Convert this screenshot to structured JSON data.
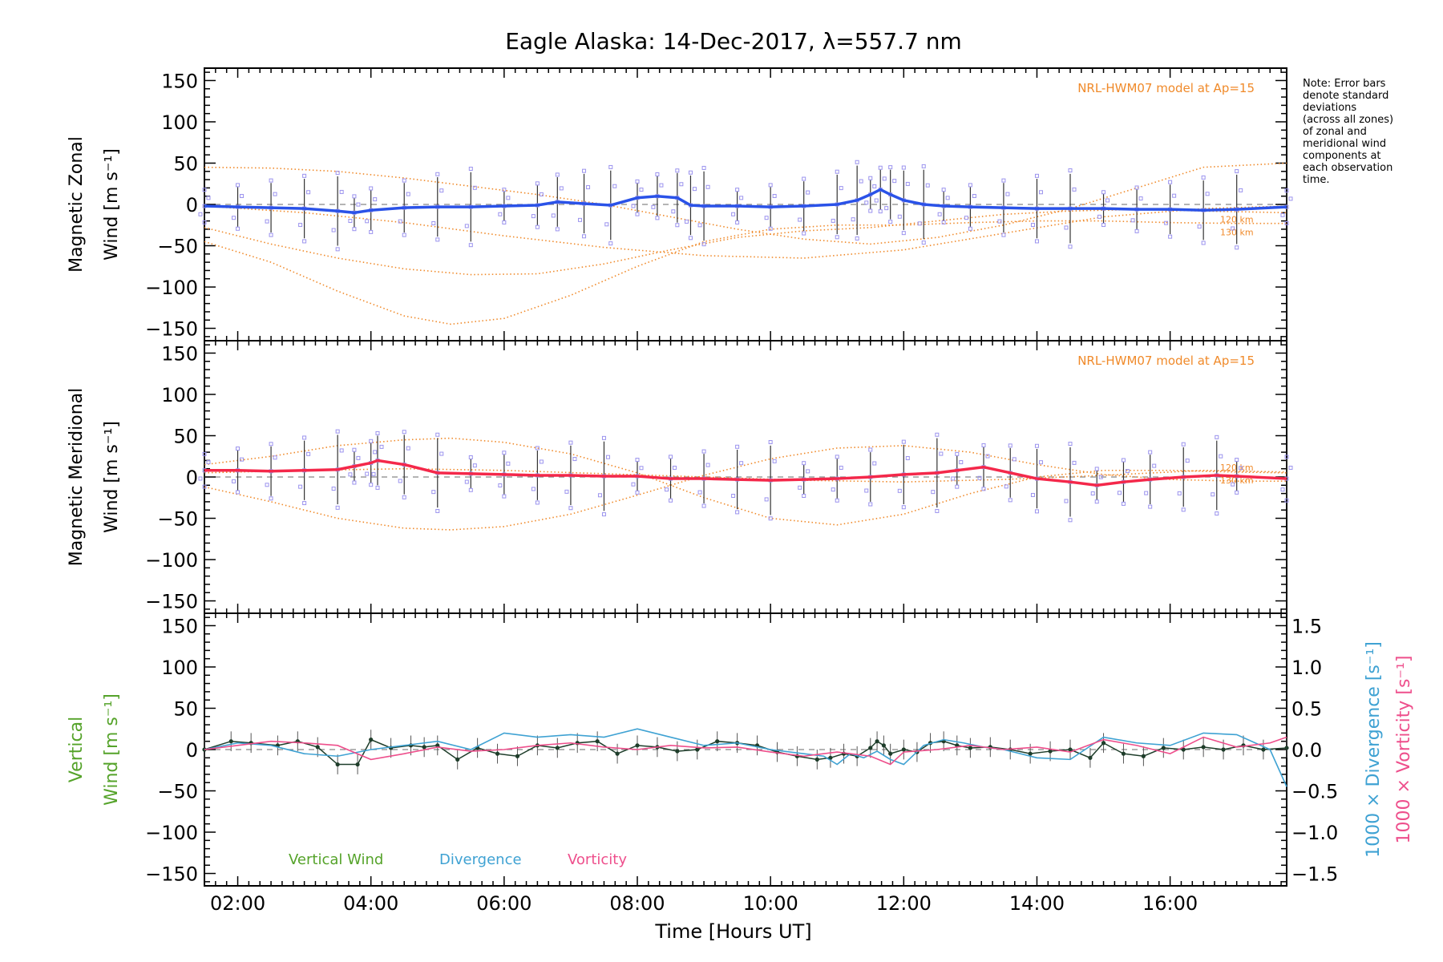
{
  "chart_data": {
    "type": "line",
    "title": "Eagle Alaska: 14-Dec-2017, λ=557.7 nm",
    "xlabel": "Time [Hours UT]",
    "xlim": [
      1.5,
      17.75
    ],
    "x_ticks": [
      {
        "v": 2,
        "label": "02:00"
      },
      {
        "v": 4,
        "label": "04:00"
      },
      {
        "v": 6,
        "label": "06:00"
      },
      {
        "v": 8,
        "label": "08:00"
      },
      {
        "v": 10,
        "label": "10:00"
      },
      {
        "v": 12,
        "label": "12:00"
      },
      {
        "v": 14,
        "label": "14:00"
      },
      {
        "v": 16,
        "label": "16:00"
      }
    ],
    "note": [
      "Note: Error bars",
      "denote standard",
      "deviations",
      "(across all zones)",
      "of zonal and",
      "meridional wind",
      "components at",
      "each observation",
      "time."
    ],
    "panels": [
      {
        "id": "zonal",
        "ylabel_1": "Magnetic Zonal",
        "ylabel_2": "Wind [m s⁻¹]",
        "ylim": [
          -165,
          165
        ],
        "y_ticks": [
          -150,
          -100,
          -50,
          0,
          50,
          100,
          150
        ],
        "model_label": "NRL-HWM07 model at Ap=15",
        "model_alt_labels": [
          "120 km",
          "130 km"
        ],
        "series": [
          {
            "name": "zonal",
            "color": "#2a52e8",
            "x": [
              1.5,
              2.0,
              2.5,
              3.0,
              3.5,
              3.75,
              4.0,
              4.5,
              5.0,
              5.5,
              6.0,
              6.5,
              6.8,
              7.2,
              7.6,
              8.0,
              8.3,
              8.6,
              8.8,
              9.0,
              9.5,
              10.0,
              10.5,
              11.0,
              11.3,
              11.5,
              11.65,
              11.8,
              12.0,
              12.3,
              12.6,
              13.0,
              13.5,
              14.0,
              14.5,
              15.0,
              15.5,
              16.0,
              16.5,
              17.0,
              17.75
            ],
            "y": [
              -2,
              -3,
              -4,
              -5,
              -8,
              -10,
              -7,
              -4,
              -3,
              -3,
              -2,
              -1,
              3,
              1,
              -1,
              8,
              10,
              8,
              -1,
              -2,
              -2,
              -3,
              -2,
              0,
              5,
              12,
              18,
              12,
              5,
              0,
              -2,
              -3,
              -4,
              -5,
              -5,
              -5,
              -6,
              -6,
              -7,
              -6,
              -3
            ]
          }
        ],
        "model_curves": [
          {
            "x": [
              1.5,
              2.5,
              3.5,
              4.5,
              5.5,
              6.5,
              7.5,
              8.5,
              9.5,
              10.5,
              11.5,
              12.5,
              13.5,
              14.5,
              15.5,
              16.5,
              17.75
            ],
            "y": [
              45,
              44,
              40,
              32,
              22,
              12,
              0,
              -15,
              -30,
              -42,
              -48,
              -40,
              -25,
              -5,
              20,
              45,
              50
            ]
          },
          {
            "x": [
              1.5,
              2.5,
              3.5,
              4.5,
              5.2,
              6.0,
              7.0,
              8.0,
              9.0,
              10.0,
              11.0,
              12.0,
              13.0,
              14.0,
              15.0,
              16.0,
              17.0,
              17.75
            ],
            "y": [
              -45,
              -70,
              -105,
              -135,
              -145,
              -138,
              -110,
              -75,
              -45,
              -30,
              -25,
              -25,
              -22,
              -20,
              -20,
              -22,
              -23,
              -23
            ]
          },
          {
            "x": [
              1.5,
              2.5,
              3.5,
              4.5,
              5.5,
              6.5,
              7.5,
              8.5,
              9.5,
              10.5,
              11.5,
              12.5,
              13.5,
              14.5,
              15.5,
              16.5,
              17.75
            ],
            "y": [
              -28,
              -48,
              -65,
              -78,
              -85,
              -84,
              -72,
              -55,
              -40,
              -32,
              -28,
              -20,
              -12,
              -8,
              -6,
              -8,
              -10
            ]
          },
          {
            "x": [
              1.5,
              3.0,
              4.5,
              6.0,
              7.5,
              9.0,
              10.5,
              12.0,
              13.5,
              15.0,
              16.5,
              17.75
            ],
            "y": [
              -2,
              -10,
              -22,
              -38,
              -52,
              -62,
              -65,
              -55,
              -35,
              -15,
              -5,
              -2
            ]
          }
        ]
      },
      {
        "id": "meridional",
        "ylabel_1": "Magnetic Meridional",
        "ylabel_2": "Wind [m s⁻¹]",
        "ylim": [
          -165,
          165
        ],
        "y_ticks": [
          -150,
          -100,
          -50,
          0,
          50,
          100,
          150
        ],
        "model_label": "NRL-HWM07 model at Ap=15",
        "model_alt_labels": [
          "120 km",
          "130 km"
        ],
        "series": [
          {
            "name": "meridional",
            "color": "#f4284a",
            "x": [
              1.5,
              2.0,
              2.5,
              3.0,
              3.5,
              3.75,
              4.0,
              4.1,
              4.5,
              5.0,
              5.5,
              6.0,
              6.5,
              7.0,
              7.5,
              8.0,
              8.5,
              9.0,
              9.5,
              10.0,
              10.5,
              11.0,
              11.5,
              12.0,
              12.5,
              12.8,
              13.2,
              13.6,
              14.0,
              14.5,
              14.9,
              15.3,
              15.7,
              16.2,
              16.7,
              17.0,
              17.75
            ],
            "y": [
              8,
              8,
              7,
              8,
              9,
              13,
              17,
              20,
              15,
              5,
              4,
              3,
              2,
              2,
              1,
              1,
              -2,
              -2,
              -3,
              -4,
              -3,
              -2,
              0,
              3,
              5,
              8,
              12,
              5,
              -2,
              -6,
              -10,
              -6,
              -3,
              0,
              2,
              1,
              -2
            ]
          }
        ],
        "model_curves": [
          {
            "x": [
              1.5,
              2.5,
              3.5,
              4.5,
              5.2,
              6.0,
              7.0,
              8.0,
              9.0,
              10.0,
              11.0,
              12.0,
              13.0,
              14.0,
              15.0,
              16.0,
              17.0,
              17.75
            ],
            "y": [
              -12,
              -30,
              -50,
              -62,
              -64,
              -60,
              -45,
              -22,
              2,
              22,
              35,
              38,
              30,
              15,
              3,
              -3,
              -5,
              -5
            ]
          },
          {
            "x": [
              1.5,
              2.5,
              3.5,
              4.5,
              5.2,
              6.0,
              7.0,
              8.0,
              9.0,
              10.0,
              11.0,
              12.0,
              13.0,
              14.0,
              15.0,
              16.0,
              17.0,
              17.75
            ],
            "y": [
              15,
              25,
              38,
              45,
              47,
              42,
              28,
              5,
              -25,
              -50,
              -58,
              -45,
              -20,
              0,
              8,
              8,
              6,
              5
            ]
          },
          {
            "x": [
              1.5,
              3.0,
              4.5,
              6.0,
              7.5,
              9.0,
              10.5,
              12.0,
              13.5,
              15.0,
              16.5,
              17.75
            ],
            "y": [
              5,
              8,
              10,
              8,
              4,
              0,
              -4,
              -6,
              -3,
              2,
              8,
              6
            ]
          }
        ]
      },
      {
        "id": "vertical",
        "ylabel_1": "Vertical",
        "ylabel_2": "Wind [m s⁻¹]",
        "ylim": [
          -165,
          165
        ],
        "y_ticks": [
          -150,
          -100,
          -50,
          0,
          50,
          100,
          150
        ],
        "right_axis": {
          "label_div": "1000 × Divergence [s⁻¹]",
          "label_vort": "1000 × Vorticity [s⁻¹]",
          "ylim": [
            -1.65,
            1.65
          ],
          "ticks": [
            {
              "v": -1.5,
              "label": "−1.5"
            },
            {
              "v": -1.0,
              "label": "−1.0"
            },
            {
              "v": -0.5,
              "label": "−0.5"
            },
            {
              "v": 0,
              "label": "0.0"
            },
            {
              "v": 0.5,
              "label": "0.5"
            },
            {
              "v": 1.0,
              "label": "1.0"
            },
            {
              "v": 1.5,
              "label": "1.5"
            }
          ]
        },
        "legend": [
          {
            "name": "Vertical Wind",
            "color": "#55a32a"
          },
          {
            "name": "Divergence",
            "color": "#3fa2d3"
          },
          {
            "name": "Vorticity",
            "color": "#ee4f8c"
          }
        ],
        "series": [
          {
            "name": "Vertical Wind",
            "color": "#1e3d2a",
            "x": [
              1.5,
              1.9,
              2.2,
              2.6,
              2.9,
              3.2,
              3.5,
              3.8,
              4.0,
              4.3,
              4.6,
              4.8,
              5.0,
              5.3,
              5.6,
              5.9,
              6.2,
              6.5,
              6.8,
              7.1,
              7.4,
              7.7,
              8.0,
              8.3,
              8.6,
              8.9,
              9.2,
              9.5,
              9.8,
              10.1,
              10.4,
              10.7,
              10.9,
              11.1,
              11.3,
              11.5,
              11.6,
              11.7,
              11.8,
              12.0,
              12.2,
              12.4,
              12.6,
              12.8,
              13.0,
              13.3,
              13.6,
              13.9,
              14.2,
              14.5,
              14.8,
              15.0,
              15.3,
              15.6,
              15.9,
              16.2,
              16.5,
              16.8,
              17.1,
              17.4,
              17.75
            ],
            "y": [
              0,
              10,
              8,
              5,
              10,
              3,
              -18,
              -18,
              12,
              2,
              5,
              3,
              5,
              -12,
              2,
              -5,
              -8,
              5,
              2,
              8,
              10,
              -5,
              5,
              3,
              -2,
              0,
              10,
              8,
              5,
              -3,
              -8,
              -12,
              -10,
              -5,
              -8,
              2,
              10,
              5,
              -5,
              0,
              -3,
              8,
              10,
              5,
              2,
              3,
              0,
              -5,
              -2,
              0,
              -10,
              8,
              -5,
              -8,
              2,
              0,
              3,
              0,
              5,
              0,
              2
            ]
          },
          {
            "name": "Divergence",
            "color": "#3fa2d3",
            "x": [
              1.5,
              2.0,
              2.5,
              3.0,
              3.5,
              4.0,
              4.5,
              5.0,
              5.5,
              6.0,
              6.5,
              7.0,
              7.5,
              8.0,
              8.5,
              9.0,
              9.5,
              10.0,
              10.5,
              10.8,
              11.0,
              11.2,
              11.4,
              11.6,
              11.8,
              12.0,
              12.3,
              12.6,
              12.9,
              13.2,
              13.5,
              14.0,
              14.5,
              15.0,
              15.5,
              16.0,
              16.5,
              17.0,
              17.5,
              17.75
            ],
            "y": [
              0,
              8,
              5,
              -5,
              -8,
              0,
              5,
              10,
              0,
              20,
              15,
              18,
              15,
              25,
              15,
              5,
              8,
              0,
              -5,
              -8,
              -18,
              -5,
              -10,
              -2,
              -12,
              -18,
              5,
              12,
              8,
              3,
              0,
              -10,
              -12,
              15,
              8,
              5,
              20,
              18,
              0,
              -45
            ]
          },
          {
            "name": "Vorticity",
            "color": "#ee4f8c",
            "x": [
              1.5,
              2.0,
              2.5,
              3.0,
              3.5,
              4.0,
              4.5,
              5.0,
              5.5,
              6.0,
              6.5,
              7.0,
              7.5,
              8.0,
              8.5,
              9.0,
              9.5,
              10.0,
              10.5,
              11.0,
              11.5,
              11.8,
              12.0,
              12.5,
              13.0,
              13.5,
              14.0,
              14.5,
              15.0,
              15.5,
              16.0,
              16.5,
              17.0,
              17.5,
              17.75
            ],
            "y": [
              0,
              5,
              10,
              8,
              5,
              -12,
              -5,
              3,
              -2,
              0,
              5,
              8,
              3,
              0,
              5,
              2,
              3,
              -3,
              -8,
              -3,
              -8,
              -18,
              -3,
              0,
              5,
              0,
              3,
              -3,
              12,
              5,
              -5,
              15,
              3,
              8,
              15
            ]
          }
        ]
      }
    ]
  }
}
